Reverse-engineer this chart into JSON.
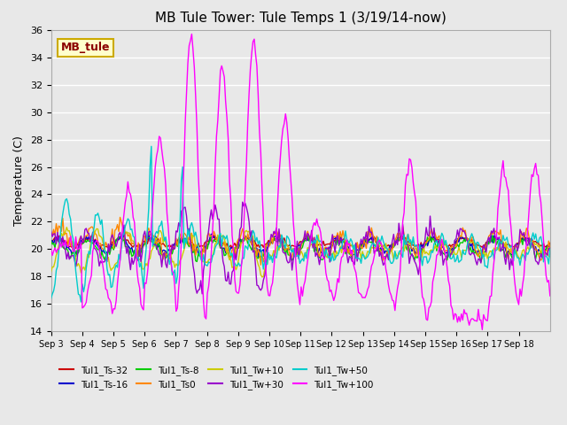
{
  "title": "MB Tule Tower: Tule Temps 1 (3/19/14-now)",
  "xlabel": "",
  "ylabel": "Temperature (C)",
  "ylim": [
    14,
    36
  ],
  "yticks": [
    14,
    16,
    18,
    20,
    22,
    24,
    26,
    28,
    30,
    32,
    34,
    36
  ],
  "background_color": "#e8e8e8",
  "plot_bg_color": "#e8e8e8",
  "grid_color": "#ffffff",
  "legend_box_label": "MB_tule",
  "series": [
    {
      "label": "Tul1_Ts-32",
      "color": "#cc0000"
    },
    {
      "label": "Tul1_Ts-16",
      "color": "#0000cc"
    },
    {
      "label": "Tul1_Ts-8",
      "color": "#00cc00"
    },
    {
      "label": "Tul1_Ts0",
      "color": "#ff8800"
    },
    {
      "label": "Tul1_Tw+10",
      "color": "#cccc00"
    },
    {
      "label": "Tul1_Tw+30",
      "color": "#9900cc"
    },
    {
      "label": "Tul1_Tw+50",
      "color": "#00cccc"
    },
    {
      "label": "Tul1_Tw+100",
      "color": "#ff00ff"
    }
  ],
  "num_days": 16,
  "x_tick_labels": [
    "Sep 3",
    "Sep 4",
    "Sep 5",
    "Sep 6",
    "Sep 7",
    "Sep 8",
    "Sep 9",
    "Sep 10",
    "Sep 11",
    "Sep 12",
    "Sep 13",
    "Sep 14",
    "Sep 15",
    "Sep 16",
    "Sep 17",
    "Sep 18"
  ]
}
